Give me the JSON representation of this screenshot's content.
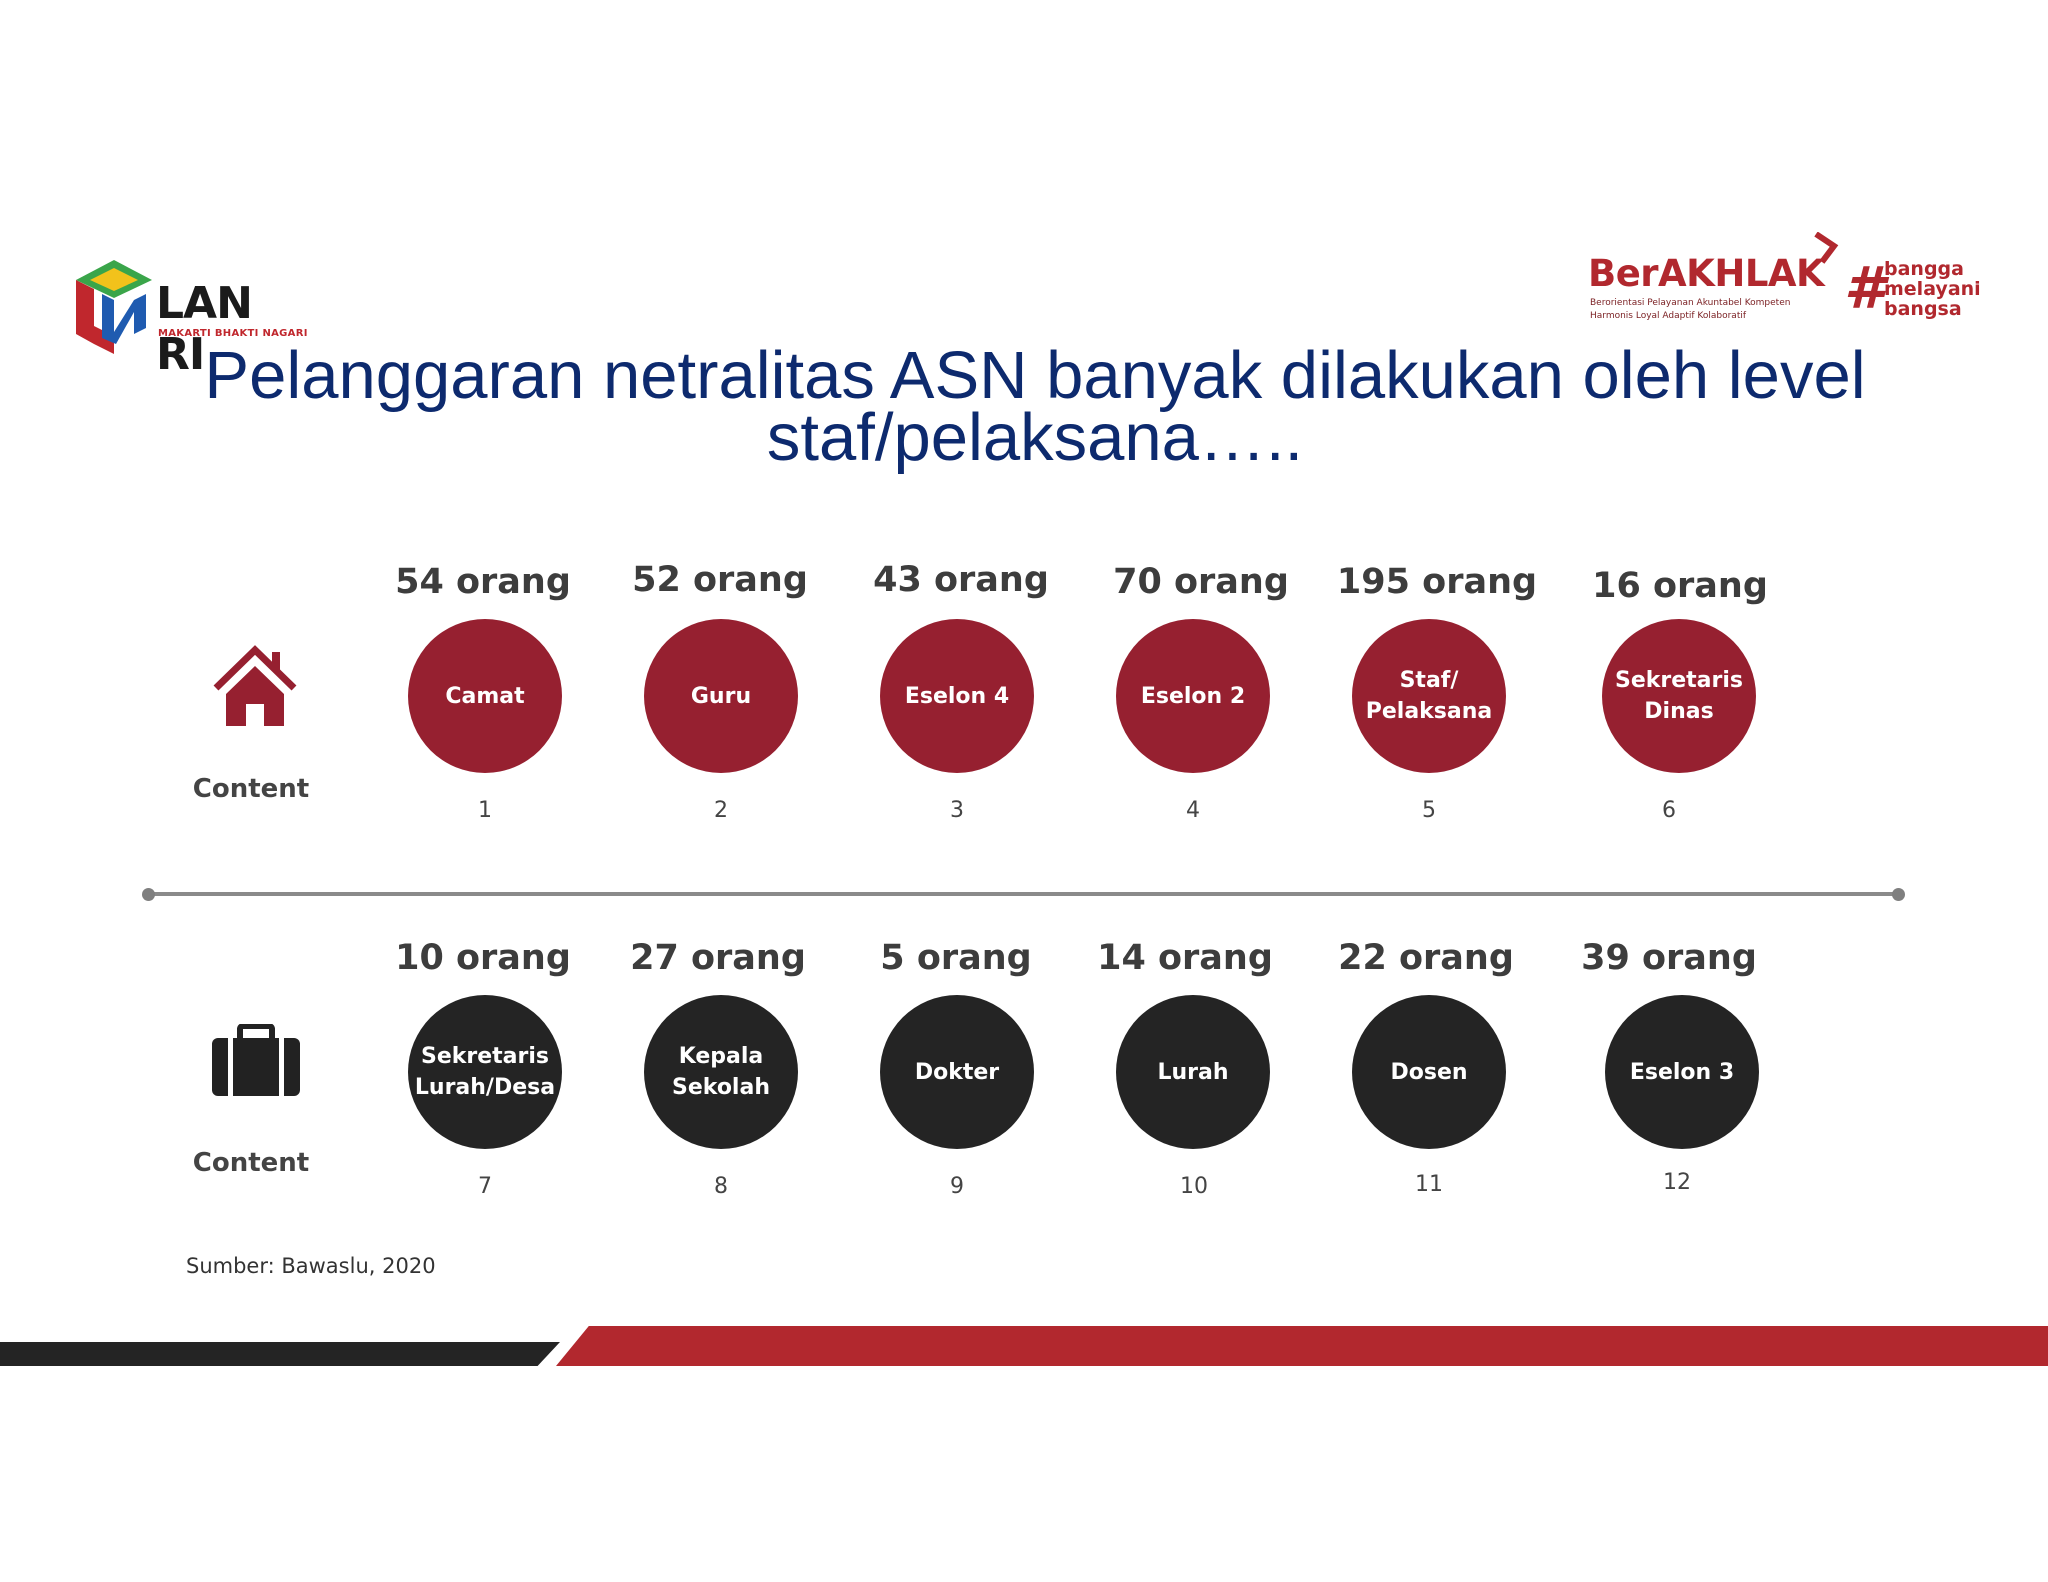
{
  "logos": {
    "lan": {
      "name": "LAN RI",
      "tagline": "MAKARTI BHAKTI NAGARI"
    },
    "berakhlak": {
      "name": "BerAKHLAK",
      "line1": "Berorientasi Pelayanan Akuntabel Kompeten",
      "line2": "Harmonis Loyal Adaptif Kolaboratif",
      "hash": "#",
      "tag1": "bangga",
      "tag2": "melayani",
      "tag3": "bangsa"
    }
  },
  "title": {
    "line1": "Pelanggaran netralitas ASN banyak dilakukan oleh level",
    "line2": "staf/pelaksana….."
  },
  "icons": {
    "top": "house-icon",
    "bottom": "briefcase-icon"
  },
  "colors": {
    "red": "#962030",
    "dark": "#242424",
    "title": "#0d2a6e",
    "band_red": "#b2282e"
  },
  "top_section": {
    "label": "Content",
    "items": [
      {
        "count": "54 orang",
        "label": "Camat",
        "num": "1"
      },
      {
        "count": "52 orang",
        "label": "Guru",
        "num": "2"
      },
      {
        "count": "43 orang",
        "label": "Eselon 4",
        "num": "3"
      },
      {
        "count": "70 orang",
        "label": "Eselon 2",
        "num": "4"
      },
      {
        "count": "195 orang",
        "label": "Staf/ Pelaksana",
        "num": "5"
      },
      {
        "count": "16 orang",
        "label": "Sekretaris Dinas",
        "num": "6"
      }
    ]
  },
  "bottom_section": {
    "label": "Content",
    "items": [
      {
        "count": "10 orang",
        "label": "Sekretaris Lurah/Desa",
        "num": "7"
      },
      {
        "count": "27 orang",
        "label": "Kepala Sekolah",
        "num": "8"
      },
      {
        "count": "5 orang",
        "label": "Dokter",
        "num": "9"
      },
      {
        "count": "14 orang",
        "label": "Lurah",
        "num": "10"
      },
      {
        "count": "22 orang",
        "label": "Dosen",
        "num": "11"
      },
      {
        "count": "39 orang",
        "label": "Eselon 3",
        "num": "12"
      }
    ]
  },
  "source": "Sumber: Bawaslu, 2020"
}
